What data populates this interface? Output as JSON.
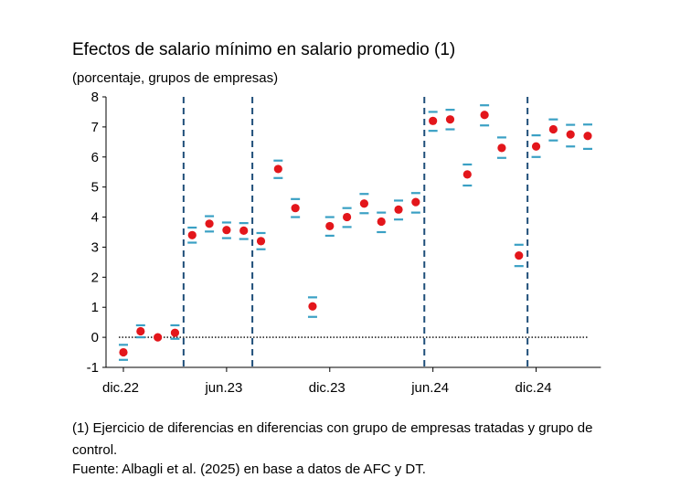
{
  "title": "Efectos de salario mínimo en salario promedio (1)",
  "subtitle": "(porcentaje, grupos de empresas)",
  "footnote": "(1) Ejercicio de diferencias en diferencias con grupo de empresas tratadas y grupo de control.",
  "source": "Fuente: Albagli et al. (2025) en base a datos de AFC y DT.",
  "colors": {
    "point": "#e3161b",
    "ci": "#3aa0c4",
    "vline": "#1f4e79",
    "zero": "#000000"
  },
  "chart_data": {
    "type": "scatter",
    "title": "Efectos de salario mínimo en salario promedio (1)",
    "ylabel": "(porcentaje, grupos de empresas)",
    "ylim": [
      -1,
      8
    ],
    "yticks": [
      -1,
      0,
      1,
      2,
      3,
      4,
      5,
      6,
      7,
      8
    ],
    "x_tick_labels": [
      {
        "label": "dic.22",
        "index": 0
      },
      {
        "label": "jun.23",
        "index": 6
      },
      {
        "label": "dic.23",
        "index": 12
      },
      {
        "label": "jun.24",
        "index": 18
      },
      {
        "label": "dic.24",
        "index": 24
      }
    ],
    "event_lines_between": [
      [
        3,
        4
      ],
      [
        7,
        8
      ],
      [
        17,
        18
      ],
      [
        23,
        24
      ]
    ],
    "zero_line": true,
    "points": [
      {
        "i": 0,
        "y": -0.5,
        "lo": -0.75,
        "hi": -0.25
      },
      {
        "i": 1,
        "y": 0.2,
        "lo": 0.0,
        "hi": 0.4
      },
      {
        "i": 2,
        "y": 0.0,
        "lo": 0.0,
        "hi": 0.0
      },
      {
        "i": 3,
        "y": 0.15,
        "lo": -0.05,
        "hi": 0.4
      },
      {
        "i": 4,
        "y": 3.4,
        "lo": 3.15,
        "hi": 3.65
      },
      {
        "i": 5,
        "y": 3.78,
        "lo": 3.52,
        "hi": 4.03
      },
      {
        "i": 6,
        "y": 3.57,
        "lo": 3.3,
        "hi": 3.82
      },
      {
        "i": 7,
        "y": 3.55,
        "lo": 3.27,
        "hi": 3.8
      },
      {
        "i": 8,
        "y": 3.2,
        "lo": 2.93,
        "hi": 3.47
      },
      {
        "i": 9,
        "y": 5.6,
        "lo": 5.3,
        "hi": 5.88
      },
      {
        "i": 10,
        "y": 4.3,
        "lo": 4.0,
        "hi": 4.6
      },
      {
        "i": 11,
        "y": 1.03,
        "lo": 0.68,
        "hi": 1.33
      },
      {
        "i": 12,
        "y": 3.7,
        "lo": 3.38,
        "hi": 4.0
      },
      {
        "i": 13,
        "y": 4.0,
        "lo": 3.67,
        "hi": 4.3
      },
      {
        "i": 14,
        "y": 4.45,
        "lo": 4.13,
        "hi": 4.77
      },
      {
        "i": 15,
        "y": 3.85,
        "lo": 3.5,
        "hi": 4.15
      },
      {
        "i": 16,
        "y": 4.25,
        "lo": 3.92,
        "hi": 4.55
      },
      {
        "i": 17,
        "y": 4.5,
        "lo": 4.15,
        "hi": 4.8
      },
      {
        "i": 18,
        "y": 7.2,
        "lo": 6.87,
        "hi": 7.5
      },
      {
        "i": 19,
        "y": 7.25,
        "lo": 6.92,
        "hi": 7.57
      },
      {
        "i": 20,
        "y": 5.42,
        "lo": 5.05,
        "hi": 5.75
      },
      {
        "i": 21,
        "y": 7.4,
        "lo": 7.05,
        "hi": 7.72
      },
      {
        "i": 22,
        "y": 6.3,
        "lo": 5.97,
        "hi": 6.65
      },
      {
        "i": 23,
        "y": 2.72,
        "lo": 2.37,
        "hi": 3.08
      },
      {
        "i": 24,
        "y": 6.35,
        "lo": 6.0,
        "hi": 6.72
      },
      {
        "i": 25,
        "y": 6.92,
        "lo": 6.55,
        "hi": 7.25
      },
      {
        "i": 26,
        "y": 6.75,
        "lo": 6.35,
        "hi": 7.07
      },
      {
        "i": 27,
        "y": 6.7,
        "lo": 6.27,
        "hi": 7.08
      }
    ]
  }
}
